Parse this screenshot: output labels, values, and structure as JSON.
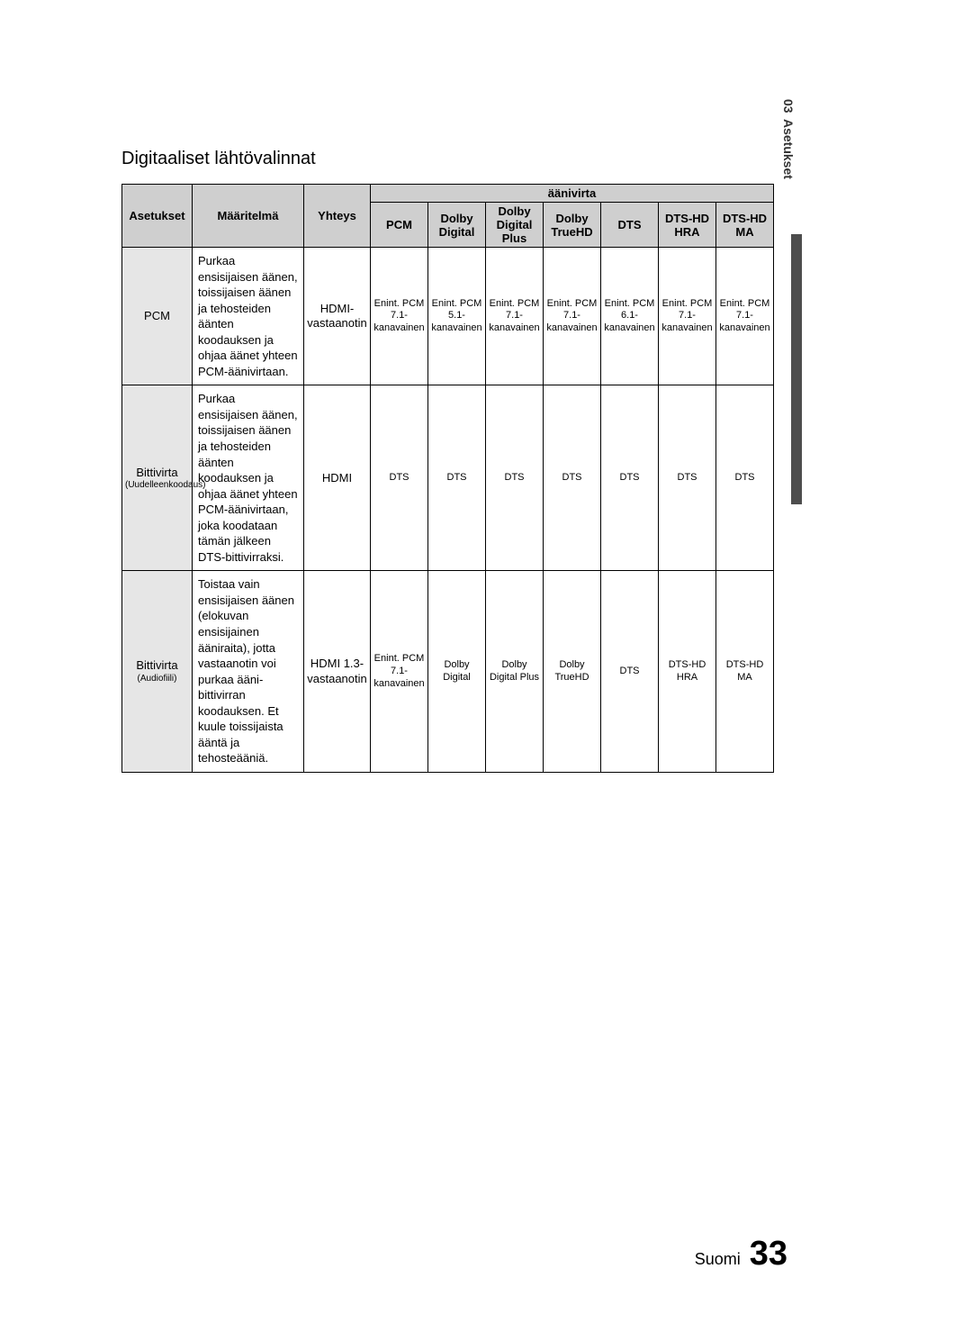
{
  "chapter": {
    "number": "03",
    "title": "Asetukset"
  },
  "section_title": "Digitaaliset lähtövalinnat",
  "table": {
    "top_header": "äänivirta",
    "headers": {
      "settings": "Asetukset",
      "definition": "Määritelmä",
      "connection": "Yhteys",
      "streams": [
        "PCM",
        "Dolby Digital",
        "Dolby Digital Plus",
        "Dolby TrueHD",
        "DTS",
        "DTS-HD HRA",
        "DTS-HD MA"
      ]
    },
    "rows": [
      {
        "setting": "PCM",
        "setting_sub": "",
        "definition": "Purkaa ensisijaisen äänen, toissijaisen äänen ja tehosteiden äänten koodauksen ja ohjaa äänet yhteen PCM-äänivirtaan.",
        "connection": "HDMI-vastaanotin",
        "cells": [
          "Enint. PCM 7.1-kanavainen",
          "Enint. PCM 5.1-kanavainen",
          "Enint. PCM 7.1-kanavainen",
          "Enint. PCM 7.1-kanavainen",
          "Enint. PCM 6.1-kanavainen",
          "Enint. PCM 7.1-kanavainen",
          "Enint. PCM 7.1-kanavainen"
        ]
      },
      {
        "setting": "Bittivirta",
        "setting_sub": "(Uudelleenkoodaus)",
        "definition": "Purkaa ensisijaisen äänen, toissijaisen äänen ja tehosteiden äänten koodauksen ja ohjaa äänet yhteen PCM-äänivirtaan, joka koodataan tämän jälkeen DTS-bittivirraksi.",
        "connection": "HDMI",
        "cells": [
          "DTS",
          "DTS",
          "DTS",
          "DTS",
          "DTS",
          "DTS",
          "DTS"
        ]
      },
      {
        "setting": "Bittivirta",
        "setting_sub": "(Audiofiili)",
        "definition": "Toistaa vain ensisijaisen äänen (elokuvan ensisijainen ääniraita), jotta vastaanotin voi purkaa ääni-bittivirran koodauksen. Et kuule toissijaista ääntä ja tehosteääniä.",
        "connection": "HDMI 1.3-vastaanotin",
        "cells": [
          "Enint. PCM 7.1-kanavainen",
          "Dolby Digital",
          "Dolby Digital Plus",
          "Dolby TrueHD",
          "DTS",
          "DTS-HD HRA",
          "DTS-HD MA"
        ]
      }
    ]
  },
  "footer": {
    "lang": "Suomi",
    "page": "33"
  },
  "style": {
    "header_bg": "#cfcfcf",
    "rowhead_bg": "#e6e6e6",
    "border": "#000000",
    "text": "#000000",
    "page_bg": "#ffffff"
  }
}
